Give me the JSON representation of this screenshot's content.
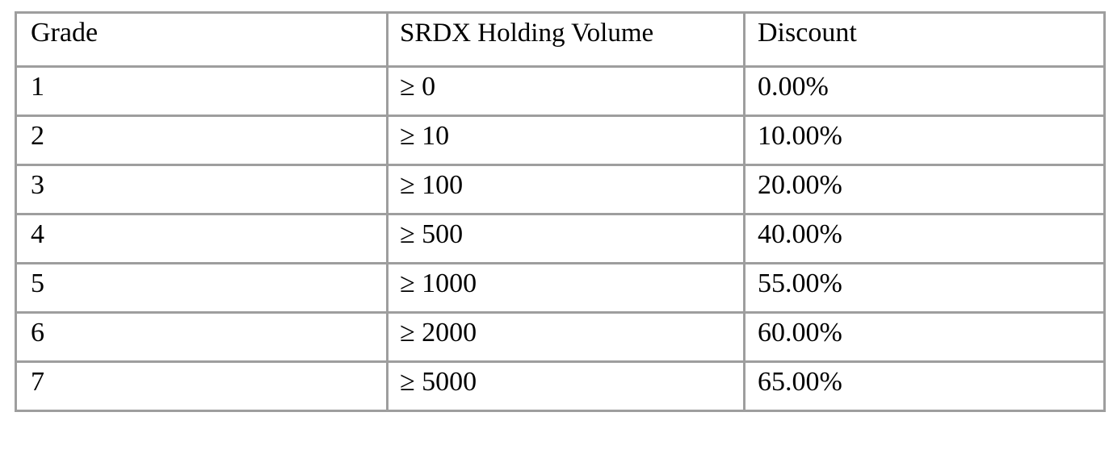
{
  "table": {
    "headers": [
      "Grade",
      "SRDX Holding Volume",
      "Discount"
    ],
    "rows": [
      [
        "1",
        "≥ 0",
        "0.00%"
      ],
      [
        "2",
        "≥ 10",
        "10.00%"
      ],
      [
        "3",
        "≥ 100",
        "20.00%"
      ],
      [
        "4",
        "≥ 500",
        "40.00%"
      ],
      [
        "5",
        "≥ 1000",
        "55.00%"
      ],
      [
        "6",
        "≥ 2000",
        "60.00%"
      ],
      [
        "7",
        "≥ 5000",
        "65.00%"
      ]
    ]
  }
}
